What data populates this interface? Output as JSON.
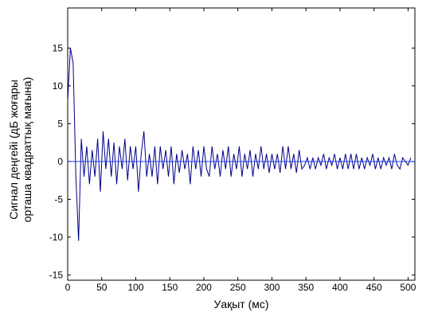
{
  "chart_data": {
    "type": "line",
    "xlabel": "Уақыт (мс)",
    "ylabel": [
      "Сигнал деңгейі (дБ жоғары",
      "орташа квадраттық мағына)"
    ],
    "xlim": [
      0,
      510
    ],
    "ylim": [
      -15.7,
      20.3
    ],
    "xticks": [
      0,
      50,
      100,
      150,
      200,
      250,
      300,
      350,
      400,
      450,
      500
    ],
    "yticks": [
      -15,
      -10,
      -5,
      0,
      5,
      10,
      15
    ],
    "series": [
      {
        "color": "#00008b",
        "x": [
          0,
          4,
          8,
          12,
          16,
          20,
          24,
          28,
          32,
          36,
          40,
          44,
          48,
          52,
          56,
          60,
          64,
          68,
          72,
          76,
          80,
          84,
          88,
          92,
          96,
          100,
          104,
          108,
          112,
          116,
          120,
          124,
          128,
          132,
          136,
          140,
          144,
          148,
          152,
          156,
          160,
          164,
          168,
          172,
          176,
          180,
          184,
          188,
          192,
          196,
          200,
          204,
          208,
          212,
          216,
          220,
          224,
          228,
          232,
          236,
          240,
          244,
          248,
          252,
          256,
          260,
          264,
          268,
          272,
          276,
          280,
          284,
          288,
          292,
          296,
          300,
          304,
          308,
          312,
          316,
          320,
          324,
          328,
          332,
          336,
          340,
          344,
          348,
          352,
          356,
          360,
          364,
          368,
          372,
          376,
          380,
          384,
          388,
          392,
          396,
          400,
          404,
          408,
          412,
          416,
          420,
          424,
          428,
          432,
          436,
          440,
          444,
          448,
          452,
          456,
          460,
          464,
          468,
          472,
          476,
          480,
          484,
          488,
          492,
          496,
          500,
          504
        ],
        "values": [
          8,
          15,
          13,
          -2,
          -10.5,
          3,
          -2,
          2,
          -3,
          1.5,
          -2,
          3,
          -4,
          4,
          -1,
          3,
          -2,
          2.5,
          -3,
          2,
          -1,
          3,
          -2.5,
          2,
          -1,
          2,
          -4,
          1,
          4,
          -2,
          1,
          -2,
          2,
          -3,
          2,
          -1,
          1.5,
          -2,
          2,
          -3,
          1,
          -1.5,
          1.5,
          -1,
          1,
          -3,
          2,
          -1,
          1.5,
          -2,
          2,
          -1,
          -2,
          2,
          -1,
          1,
          -2,
          1.5,
          -1,
          2,
          -2,
          1,
          -1,
          2,
          -2,
          1,
          -1,
          1.5,
          -2,
          1,
          -1,
          2,
          -1,
          1,
          -1.5,
          1,
          -1,
          1,
          -1.5,
          2,
          -1,
          2,
          -1,
          1,
          -1.5,
          1.5,
          -1,
          -0.5,
          0.5,
          -1,
          0.5,
          -1,
          0.5,
          -0.5,
          1,
          -1,
          0.5,
          -0.5,
          1,
          -1,
          0.5,
          -1,
          1,
          -1,
          1,
          -1,
          1,
          -1,
          0.5,
          -1,
          0.5,
          -0.5,
          1,
          -1,
          0.5,
          -1,
          0.5,
          -0.5,
          0.5,
          -1,
          1,
          -0.5,
          -1,
          0.5,
          0,
          -0.5,
          0.5
        ]
      },
      {
        "color": "#1f3fff",
        "x": [
          0,
          510
        ],
        "values": [
          0,
          0
        ]
      }
    ]
  }
}
